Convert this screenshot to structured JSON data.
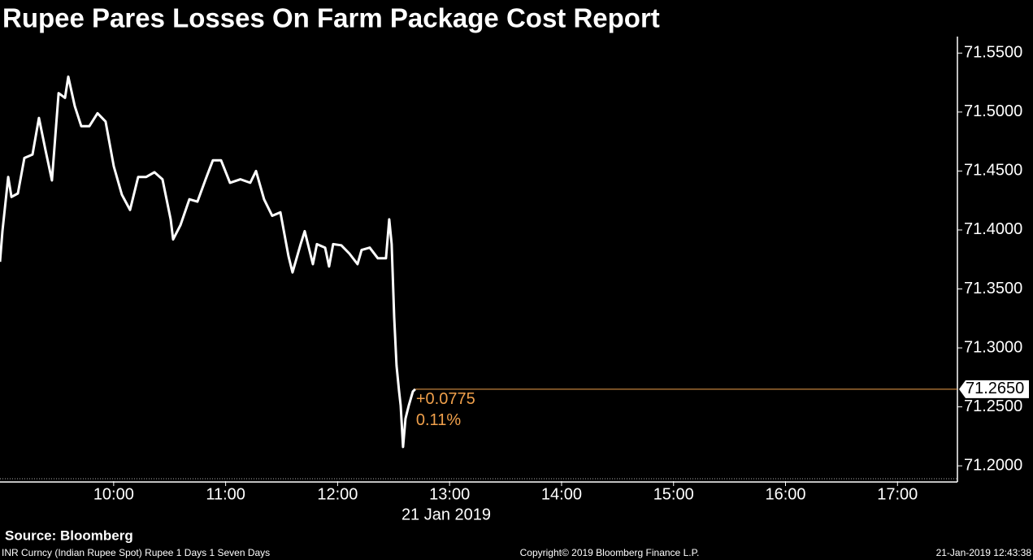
{
  "chart_data": {
    "type": "line",
    "title": "Rupee Pares Losses On Farm Package Cost Report",
    "x_label": "21 Jan 2019",
    "source": "Source: Bloomberg",
    "footer_left": "INR Curncy (Indian Rupee Spot) Rupee 1 Days 1 Seven Days",
    "footer_center": "Copyright© 2019 Bloomberg Finance L.P.",
    "footer_right": "21-Jan-2019 12:43:38",
    "color": "#ffffff",
    "last_price": {
      "value": 71.265,
      "label": "71.2650",
      "color": "#f0a04b"
    },
    "annotations": [
      "+0.0775",
      "0.11%"
    ],
    "x": [
      8.985,
      9.007,
      9.058,
      9.087,
      9.145,
      9.203,
      9.275,
      9.333,
      9.391,
      9.449,
      9.508,
      9.566,
      9.595,
      9.653,
      9.711,
      9.783,
      9.856,
      9.928,
      10.001,
      10.073,
      10.146,
      10.219,
      10.291,
      10.364,
      10.436,
      10.509,
      10.531,
      10.596,
      10.676,
      10.748,
      10.821,
      10.886,
      10.959,
      11.039,
      11.133,
      11.22,
      11.271,
      11.343,
      11.416,
      11.489,
      11.561,
      11.597,
      11.67,
      11.706,
      11.779,
      11.815,
      11.888,
      11.924,
      11.96,
      12.033,
      12.105,
      12.178,
      12.214,
      12.287,
      12.359,
      12.432,
      12.461,
      12.483,
      12.505,
      12.526,
      12.548,
      12.563,
      12.584,
      12.606,
      12.635,
      12.672,
      12.693
    ],
    "values": [
      71.373,
      71.399,
      71.445,
      71.428,
      71.431,
      71.461,
      71.464,
      71.495,
      71.468,
      71.442,
      71.516,
      71.512,
      71.53,
      71.505,
      71.488,
      71.488,
      71.499,
      71.492,
      71.454,
      71.43,
      71.417,
      71.445,
      71.445,
      71.449,
      71.443,
      71.409,
      71.392,
      71.404,
      71.426,
      71.424,
      71.443,
      71.459,
      71.459,
      71.44,
      71.443,
      71.44,
      71.45,
      71.426,
      71.412,
      71.415,
      71.378,
      71.364,
      71.388,
      71.399,
      71.371,
      71.388,
      71.385,
      71.369,
      71.388,
      71.387,
      71.38,
      71.371,
      71.383,
      71.385,
      71.376,
      71.376,
      71.409,
      71.388,
      71.326,
      71.285,
      71.264,
      71.251,
      71.216,
      71.24,
      71.251,
      71.263,
      71.265
    ],
    "xlim": [
      8.985,
      17.535
    ],
    "ylim": [
      71.187,
      71.564
    ],
    "xticks": [
      {
        "value": 10,
        "label": "10:00"
      },
      {
        "value": 11,
        "label": "11:00"
      },
      {
        "value": 12,
        "label": "12:00"
      },
      {
        "value": 13,
        "label": "13:00"
      },
      {
        "value": 14,
        "label": "14:00"
      },
      {
        "value": 15,
        "label": "15:00"
      },
      {
        "value": 16,
        "label": "16:00"
      },
      {
        "value": 17,
        "label": "17:00"
      }
    ],
    "yticks": [
      {
        "value": 71.2,
        "label": "71.2000"
      },
      {
        "value": 71.25,
        "label": "71.2500"
      },
      {
        "value": 71.3,
        "label": "71.3000"
      },
      {
        "value": 71.35,
        "label": "71.3500"
      },
      {
        "value": 71.4,
        "label": "71.4000"
      },
      {
        "value": 71.45,
        "label": "71.4500"
      },
      {
        "value": 71.5,
        "label": "71.5000"
      },
      {
        "value": 71.55,
        "label": "71.5500"
      }
    ]
  }
}
